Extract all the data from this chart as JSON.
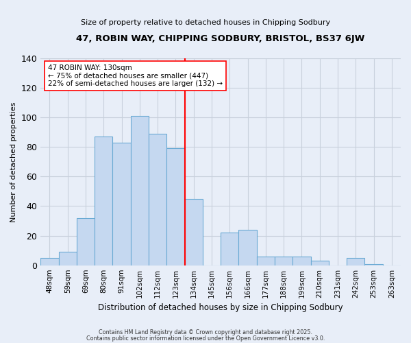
{
  "title": "47, ROBIN WAY, CHIPPING SODBURY, BRISTOL, BS37 6JW",
  "subtitle": "Size of property relative to detached houses in Chipping Sodbury",
  "xlabel": "Distribution of detached houses by size in Chipping Sodbury",
  "ylabel": "Number of detached properties",
  "bar_labels": [
    "48sqm",
    "59sqm",
    "69sqm",
    "80sqm",
    "91sqm",
    "102sqm",
    "112sqm",
    "123sqm",
    "134sqm",
    "145sqm",
    "156sqm",
    "166sqm",
    "177sqm",
    "188sqm",
    "199sqm",
    "210sqm",
    "231sqm",
    "242sqm",
    "253sqm",
    "263sqm"
  ],
  "bar_values": [
    5,
    9,
    32,
    87,
    83,
    101,
    89,
    79,
    45,
    0,
    22,
    24,
    6,
    6,
    6,
    3,
    0,
    5,
    1,
    0
  ],
  "bar_color": "#c5d8f0",
  "bar_edge_color": "#6aaad4",
  "vline_x_index": 7.5,
  "vline_color": "red",
  "ylim": [
    0,
    140
  ],
  "yticks": [
    0,
    20,
    40,
    60,
    80,
    100,
    120,
    140
  ],
  "annotation_title": "47 ROBIN WAY: 130sqm",
  "annotation_line1": "← 75% of detached houses are smaller (447)",
  "annotation_line2": "22% of semi-detached houses are larger (132) →",
  "annotation_box_color": "white",
  "annotation_box_edge": "red",
  "footer_line1": "Contains HM Land Registry data © Crown copyright and database right 2025.",
  "footer_line2": "Contains public sector information licensed under the Open Government Licence v3.0.",
  "background_color": "#e8eef8",
  "grid_color": "#c8d0dc"
}
